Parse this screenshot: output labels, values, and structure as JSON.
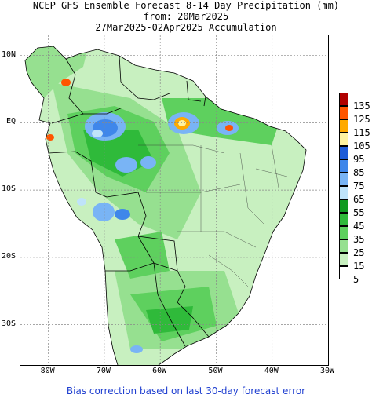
{
  "title": {
    "line1": "NCEP GFS Ensemble Forecast 8-14 Day Precipitation (mm)",
    "line2": "from: 20Mar2025",
    "line3": "27Mar2025-02Apr2025 Accumulation"
  },
  "lat_labels": [
    {
      "text": "10N",
      "lat": 10
    },
    {
      "text": "EQ",
      "lat": 0
    },
    {
      "text": "10S",
      "lat": -10
    },
    {
      "text": "20S",
      "lat": -20
    },
    {
      "text": "30S",
      "lat": -30
    }
  ],
  "lon_labels": [
    {
      "text": "80W",
      "lon": -80
    },
    {
      "text": "70W",
      "lon": -70
    },
    {
      "text": "60W",
      "lon": -60
    },
    {
      "text": "50W",
      "lon": -50
    },
    {
      "text": "40W",
      "lon": -40
    },
    {
      "text": "30W",
      "lon": -30
    }
  ],
  "map_extent": {
    "lon_min": -85,
    "lon_max": -30,
    "lat_min": -36,
    "lat_max": 13
  },
  "legend": [
    {
      "label": "135",
      "color": "#b00000"
    },
    {
      "label": "125",
      "color": "#ff5500"
    },
    {
      "label": "115",
      "color": "#ffaa00"
    },
    {
      "label": "105",
      "color": "#fff3a0"
    },
    {
      "label": "95",
      "color": "#1e5cd8"
    },
    {
      "label": "85",
      "color": "#3f87ea"
    },
    {
      "label": "75",
      "color": "#79b4f5"
    },
    {
      "label": "65",
      "color": "#bfe3fa"
    },
    {
      "label": "55",
      "color": "#0f9a20"
    },
    {
      "label": "45",
      "color": "#2fba3a"
    },
    {
      "label": "35",
      "color": "#5ed05e"
    },
    {
      "label": "25",
      "color": "#96e090"
    },
    {
      "label": "15",
      "color": "#c8f0c0"
    },
    {
      "label": "5",
      "color": "#ffffff"
    }
  ],
  "footer": "Bias correction based on last 30-day forecast error"
}
